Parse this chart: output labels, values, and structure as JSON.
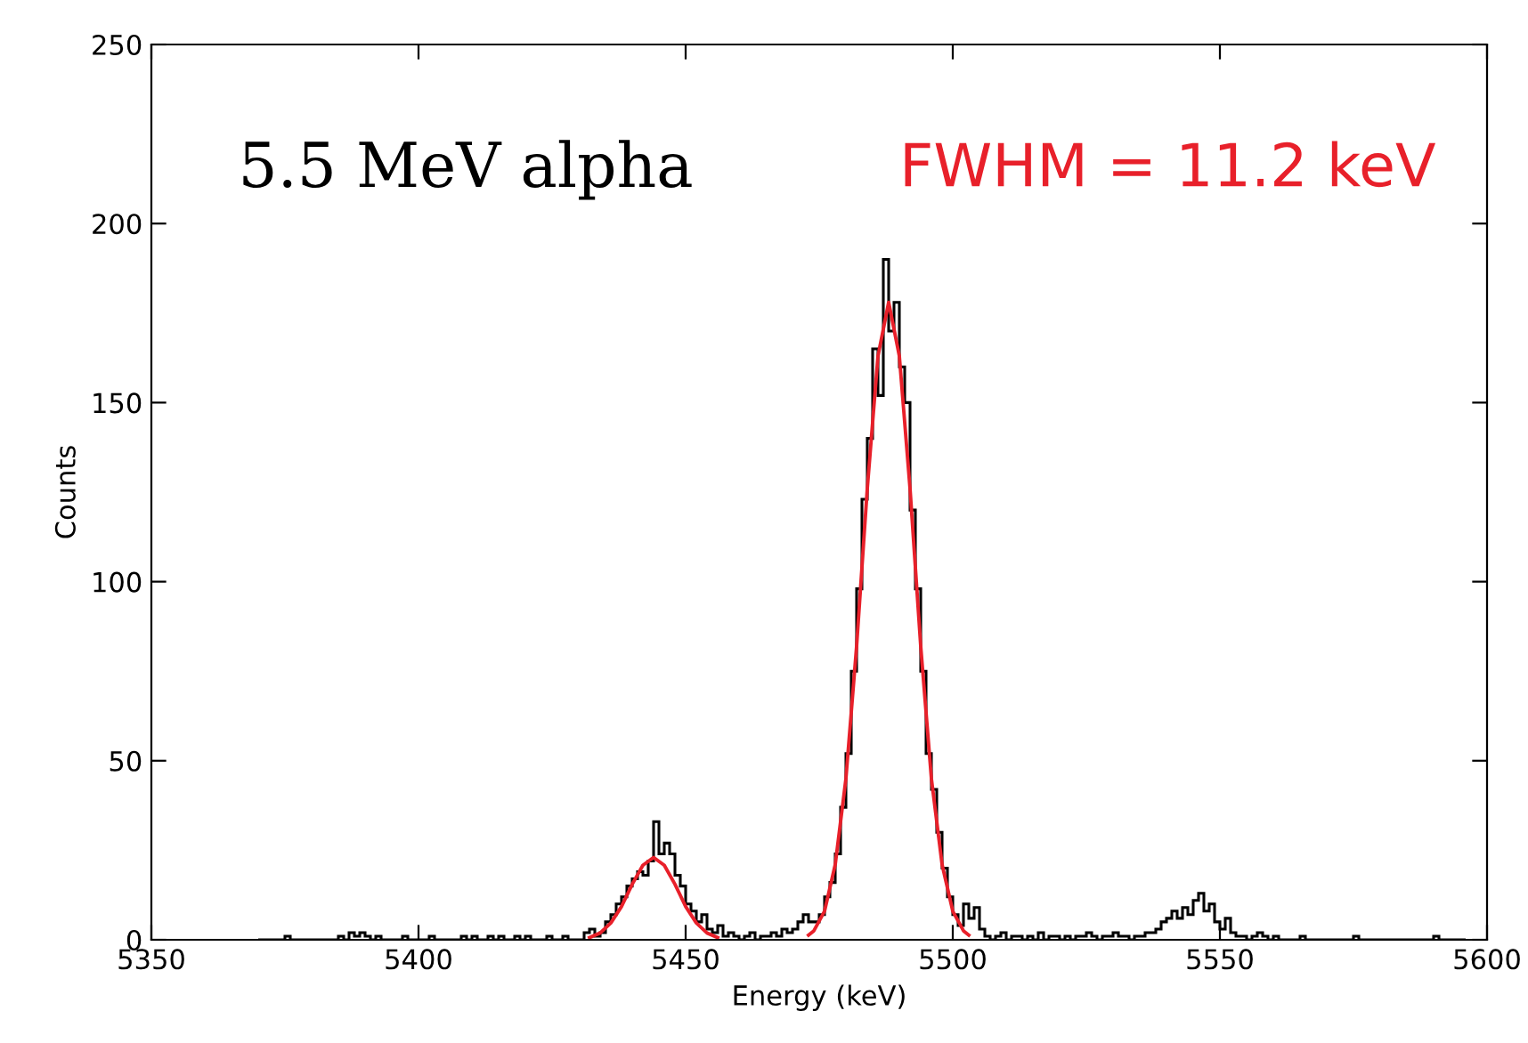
{
  "chart_data": {
    "type": "histogram",
    "xlabel": "Energy (keV)",
    "ylabel": "Counts",
    "annotations": [
      "5.5 MeV alpha",
      "FWHM = 11.2 keV"
    ],
    "xlim": [
      5350,
      5600
    ],
    "xticks": [
      5350,
      5400,
      5450,
      5500,
      5550,
      5600
    ],
    "ylim": [
      0,
      250
    ],
    "yticks": [
      0,
      50,
      100,
      150,
      200,
      250
    ],
    "grid": false,
    "series": [
      {
        "color": "#000000",
        "bins": [
          5370,
          5371,
          5372,
          5373,
          5374,
          5375,
          5376,
          5377,
          5378,
          5379,
          5380,
          5381,
          5382,
          5383,
          5384,
          5385,
          5386,
          5387,
          5388,
          5389,
          5390,
          5391,
          5392,
          5393,
          5394,
          5395,
          5396,
          5397,
          5398,
          5399,
          5400,
          5401,
          5402,
          5403,
          5404,
          5405,
          5406,
          5407,
          5408,
          5409,
          5410,
          5411,
          5412,
          5413,
          5414,
          5415,
          5416,
          5417,
          5418,
          5419,
          5420,
          5421,
          5422,
          5423,
          5424,
          5425,
          5426,
          5427,
          5428,
          5429,
          5430,
          5431,
          5432,
          5433,
          5434,
          5435,
          5436,
          5437,
          5438,
          5439,
          5440,
          5441,
          5442,
          5443,
          5444,
          5445,
          5446,
          5447,
          5448,
          5449,
          5450,
          5451,
          5452,
          5453,
          5454,
          5455,
          5456,
          5457,
          5458,
          5459,
          5460,
          5461,
          5462,
          5463,
          5464,
          5465,
          5466,
          5467,
          5468,
          5469,
          5470,
          5471,
          5472,
          5473,
          5474,
          5475,
          5476,
          5477,
          5478,
          5479,
          5480,
          5481,
          5482,
          5483,
          5484,
          5485,
          5486,
          5487,
          5488,
          5489,
          5490,
          5491,
          5492,
          5493,
          5494,
          5495,
          5496,
          5497,
          5498,
          5499,
          5500,
          5501,
          5502,
          5503,
          5504,
          5505,
          5506,
          5507,
          5508,
          5509,
          5510,
          5511,
          5512,
          5513,
          5514,
          5515,
          5516,
          5517,
          5518,
          5519,
          5520,
          5521,
          5522,
          5523,
          5524,
          5525,
          5526,
          5527,
          5528,
          5529,
          5530,
          5531,
          5532,
          5533,
          5534,
          5535,
          5536,
          5537,
          5538,
          5539,
          5540,
          5541,
          5542,
          5543,
          5544,
          5545,
          5546,
          5547,
          5548,
          5549,
          5550,
          5551,
          5552,
          5553,
          5554,
          5555,
          5556,
          5557,
          5558,
          5559,
          5560,
          5561,
          5562,
          5563,
          5564,
          5565,
          5566,
          5567,
          5568,
          5569,
          5570,
          5571,
          5572,
          5573,
          5574,
          5575,
          5576,
          5577,
          5578,
          5579,
          5580,
          5581,
          5582,
          5583,
          5584,
          5585,
          5586,
          5587,
          5588,
          5589,
          5590,
          5591,
          5592,
          5593,
          5594,
          5595,
          5596
        ],
        "values": [
          0,
          0,
          0,
          0,
          0,
          1,
          0,
          0,
          0,
          0,
          0,
          0,
          0,
          0,
          0,
          1,
          0,
          2,
          1,
          2,
          1,
          0,
          1,
          0,
          0,
          0,
          0,
          1,
          0,
          0,
          0,
          0,
          1,
          0,
          0,
          0,
          0,
          0,
          1,
          0,
          1,
          0,
          0,
          1,
          0,
          1,
          0,
          0,
          1,
          0,
          1,
          0,
          0,
          0,
          1,
          0,
          0,
          1,
          0,
          0,
          0,
          2,
          3,
          1,
          2,
          5,
          7,
          10,
          12,
          15,
          17,
          19,
          18,
          22,
          33,
          24,
          27,
          24,
          18,
          15,
          10,
          8,
          5,
          7,
          3,
          2,
          4,
          1,
          2,
          1,
          0,
          1,
          2,
          0,
          1,
          1,
          2,
          1,
          3,
          2,
          3,
          5,
          7,
          5,
          5,
          7,
          12,
          16,
          24,
          37,
          52,
          75,
          98,
          123,
          140,
          165,
          152,
          190,
          170,
          178,
          160,
          150,
          120,
          98,
          75,
          52,
          42,
          30,
          20,
          12,
          7,
          4,
          10,
          6,
          9,
          3,
          1,
          0,
          1,
          2,
          0,
          1,
          1,
          0,
          1,
          0,
          2,
          0,
          1,
          1,
          0,
          1,
          0,
          1,
          1,
          2,
          1,
          0,
          1,
          1,
          2,
          1,
          1,
          0,
          1,
          1,
          2,
          2,
          3,
          5,
          6,
          8,
          6,
          9,
          7,
          11,
          13,
          8,
          10,
          5,
          3,
          6,
          2,
          1,
          1,
          0,
          1,
          2,
          1,
          0,
          1,
          0,
          0,
          0,
          0,
          1,
          0,
          0,
          0,
          0,
          0,
          0,
          0,
          0,
          0,
          1,
          0,
          0,
          0,
          0,
          0,
          0,
          0,
          0,
          0,
          0,
          0,
          0,
          0,
          0,
          1,
          0,
          0,
          0,
          0,
          0
        ]
      },
      {
        "type": "line",
        "color": "#e8202a",
        "x": [
          5432,
          5434,
          5436,
          5438,
          5440,
          5442,
          5444,
          5446,
          5448,
          5450,
          5452,
          5454,
          5456
        ],
        "values": [
          0.6,
          1.9,
          4.7,
          9.3,
          15.5,
          20.8,
          23,
          20.8,
          15.5,
          9.3,
          4.7,
          1.9,
          0.6
        ]
      },
      {
        "type": "line",
        "color": "#e8202a",
        "x": [
          5473,
          5474,
          5476,
          5478,
          5480,
          5482,
          5484,
          5486,
          5488,
          5490,
          5492,
          5494,
          5496,
          5498,
          5500,
          5502,
          5503
        ],
        "values": [
          1.3,
          2.5,
          8,
          21,
          45,
          82,
          126,
          163,
          178,
          163,
          126,
          82,
          45,
          21,
          8,
          2.5,
          1.3
        ]
      }
    ]
  }
}
